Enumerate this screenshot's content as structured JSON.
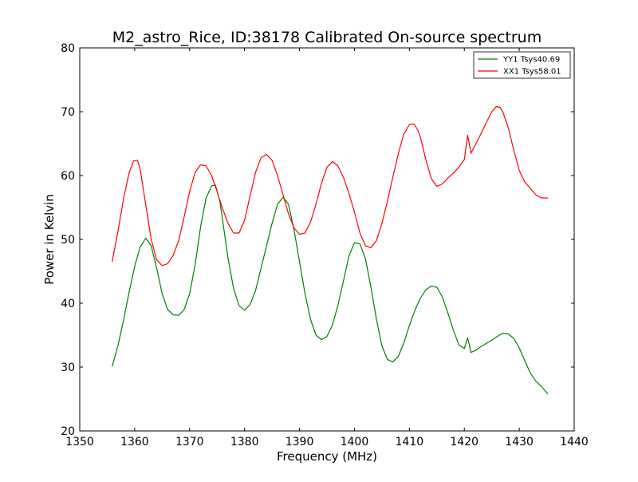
{
  "chart_data": {
    "type": "line",
    "title": "M2_astro_Rice, ID:38178 Calibrated On-source spectrum",
    "xlabel": "Frequency (MHz)",
    "ylabel": "Power in Kelvin",
    "xlim": [
      1350,
      1440
    ],
    "ylim": [
      20,
      80
    ],
    "xticks": [
      1350,
      1360,
      1370,
      1380,
      1390,
      1400,
      1410,
      1420,
      1430,
      1440
    ],
    "yticks": [
      20,
      30,
      40,
      50,
      60,
      70,
      80
    ],
    "grid": false,
    "legend_position": "top-right",
    "series": [
      {
        "name": "YY1 Tsys40.69",
        "color": "#008000",
        "x": [
          1355.9,
          1357,
          1358,
          1359,
          1360,
          1361,
          1362,
          1363,
          1364,
          1365,
          1366,
          1367,
          1368,
          1369,
          1370,
          1371,
          1372,
          1373,
          1374,
          1374.7,
          1375.5,
          1376,
          1377,
          1378,
          1379,
          1380,
          1381,
          1382,
          1383,
          1384,
          1385,
          1386,
          1387,
          1388,
          1389,
          1390,
          1391,
          1392,
          1393,
          1394,
          1395,
          1396,
          1397,
          1398,
          1399,
          1400,
          1401,
          1402,
          1403,
          1404,
          1405,
          1406,
          1407,
          1408,
          1409,
          1410,
          1411,
          1412,
          1413,
          1414,
          1415,
          1416,
          1417,
          1418,
          1419,
          1420,
          1420.6,
          1420.9,
          1421.2,
          1422,
          1423,
          1424,
          1425,
          1426,
          1427,
          1428,
          1429,
          1430,
          1431,
          1432,
          1433,
          1434,
          1435.2
        ],
        "values": [
          30.1,
          33.5,
          37.5,
          41.8,
          45.8,
          48.8,
          50.2,
          49.0,
          45.5,
          41.5,
          39.0,
          38.2,
          38.1,
          39.0,
          41.5,
          46.0,
          52.0,
          56.5,
          58.4,
          58.5,
          56.0,
          53.0,
          47.0,
          42.3,
          39.6,
          38.9,
          39.8,
          42.0,
          45.5,
          49.0,
          52.5,
          55.5,
          56.6,
          55.5,
          51.5,
          46.5,
          41.5,
          37.5,
          35.0,
          34.3,
          34.8,
          36.6,
          39.7,
          43.5,
          47.4,
          49.5,
          49.3,
          47.0,
          42.5,
          37.5,
          33.3,
          31.2,
          30.8,
          31.7,
          33.8,
          36.5,
          38.9,
          40.8,
          42.1,
          42.7,
          42.5,
          41.0,
          38.5,
          35.8,
          33.5,
          32.9,
          34.6,
          33.5,
          32.3,
          32.6,
          33.2,
          33.7,
          34.2,
          34.8,
          35.3,
          35.2,
          34.5,
          33.0,
          31.0,
          29.1,
          27.8,
          27.0,
          25.8
        ]
      },
      {
        "name": "XX1 Tsys58.01",
        "color": "#ff0000",
        "x": [
          1355.9,
          1357,
          1358,
          1359,
          1359.8,
          1360.5,
          1361,
          1362,
          1363,
          1364,
          1365,
          1366,
          1367,
          1368,
          1369,
          1370,
          1371,
          1372,
          1373,
          1374,
          1375,
          1376,
          1377,
          1378,
          1379,
          1380,
          1381,
          1382,
          1383,
          1384,
          1385,
          1386,
          1387,
          1388,
          1389,
          1390,
          1391,
          1392,
          1393,
          1394,
          1395,
          1396,
          1397,
          1398,
          1399,
          1400,
          1401,
          1402,
          1403,
          1404,
          1405,
          1406,
          1407,
          1408,
          1409,
          1410,
          1410.8,
          1411.5,
          1412,
          1413,
          1414,
          1415,
          1416,
          1417,
          1418,
          1419,
          1420,
          1420.6,
          1420.9,
          1421.2,
          1422,
          1423,
          1424,
          1425,
          1425.8,
          1426.5,
          1427,
          1428,
          1429,
          1430,
          1431,
          1432,
          1433,
          1434,
          1435.2
        ],
        "values": [
          46.5,
          51.5,
          56.5,
          60.5,
          62.3,
          62.4,
          61.0,
          55.5,
          50.0,
          46.8,
          45.9,
          46.2,
          47.5,
          49.8,
          53.5,
          57.5,
          60.5,
          61.7,
          61.5,
          60.0,
          57.5,
          54.8,
          52.5,
          51.0,
          51.0,
          53.0,
          56.8,
          60.5,
          62.8,
          63.3,
          62.4,
          60.0,
          57.0,
          54.0,
          51.8,
          50.8,
          51.0,
          52.7,
          55.5,
          58.8,
          61.3,
          62.2,
          61.5,
          59.7,
          57.2,
          54.3,
          51.0,
          49.0,
          48.7,
          49.8,
          52.5,
          56.0,
          59.8,
          63.5,
          66.5,
          68.0,
          68.1,
          67.2,
          66.0,
          62.5,
          59.5,
          58.3,
          58.7,
          59.6,
          60.4,
          61.3,
          62.5,
          66.3,
          65.0,
          63.5,
          64.8,
          66.5,
          68.3,
          70.0,
          70.8,
          70.7,
          70.0,
          67.5,
          64.0,
          60.8,
          59.0,
          58.0,
          57.0,
          56.5,
          56.5
        ]
      }
    ]
  }
}
